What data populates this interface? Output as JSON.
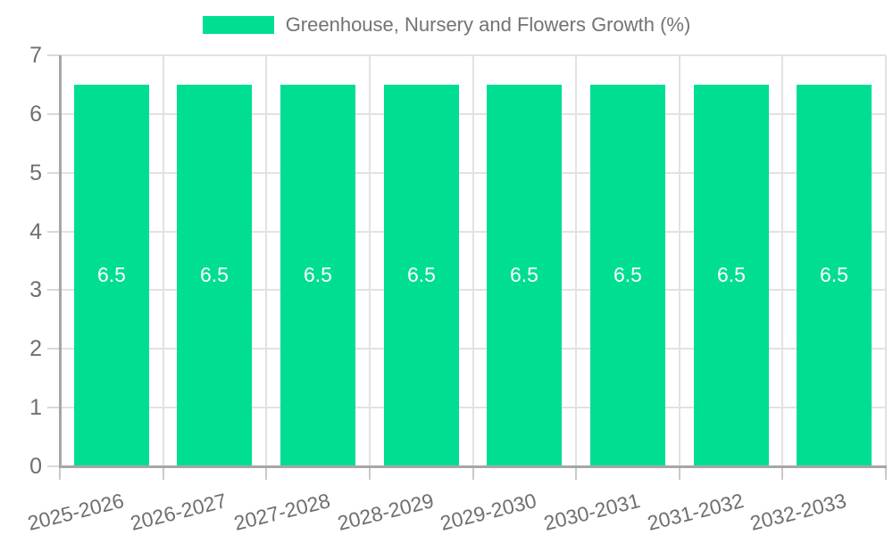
{
  "chart_data": {
    "type": "bar",
    "title": "Greenhouse, Nursery and Flowers Growth (%)",
    "legend_position": "top-center",
    "categories": [
      "2025-2026",
      "2026-2027",
      "2027-2028",
      "2028-2029",
      "2029-2030",
      "2030-2031",
      "2031-2032",
      "2032-2033"
    ],
    "series": [
      {
        "name": "Greenhouse, Nursery and Flowers Growth (%)",
        "values": [
          6.5,
          6.5,
          6.5,
          6.5,
          6.5,
          6.5,
          6.5,
          6.5
        ]
      }
    ],
    "bar_value_labels": [
      "6.5",
      "6.5",
      "6.5",
      "6.5",
      "6.5",
      "6.5",
      "6.5",
      "6.5"
    ],
    "xlabel": "",
    "ylabel": "",
    "ylim": [
      0,
      7
    ],
    "yticks": [
      0,
      1,
      2,
      3,
      4,
      5,
      6,
      7
    ],
    "grid": true,
    "x_tick_label_rotation_deg": -14,
    "colors": {
      "bar": "#00de91",
      "bar_label": "#ffffff",
      "legend_text": "#737373",
      "axis_text": "#6f6f6f",
      "gridline": "#e2e2e2",
      "axis_line": "#a6a6a6",
      "background": "#ffffff"
    }
  }
}
